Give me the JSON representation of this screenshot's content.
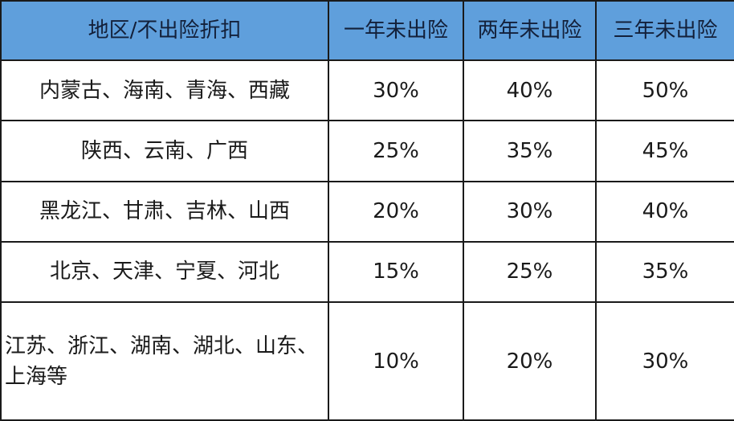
{
  "table": {
    "header_color": "#5f9fdc",
    "headers": [
      "地区/不出险折扣",
      "一年未出险",
      "两年未出险",
      "三年未出险"
    ],
    "rows": [
      [
        "内蒙古、海南、青海、西藏",
        "30%",
        "40%",
        "50%"
      ],
      [
        "陕西、云南、广西",
        "25%",
        "35%",
        "45%"
      ],
      [
        "黑龙江、甘肃、吉林、山西",
        "20%",
        "30%",
        "40%"
      ],
      [
        "北京、天津、宁夏、河北",
        "15%",
        "25%",
        "35%"
      ],
      [
        "江苏、浙江、湖南、湖北、山东、上海等",
        "10%",
        "20%",
        "30%"
      ]
    ]
  }
}
